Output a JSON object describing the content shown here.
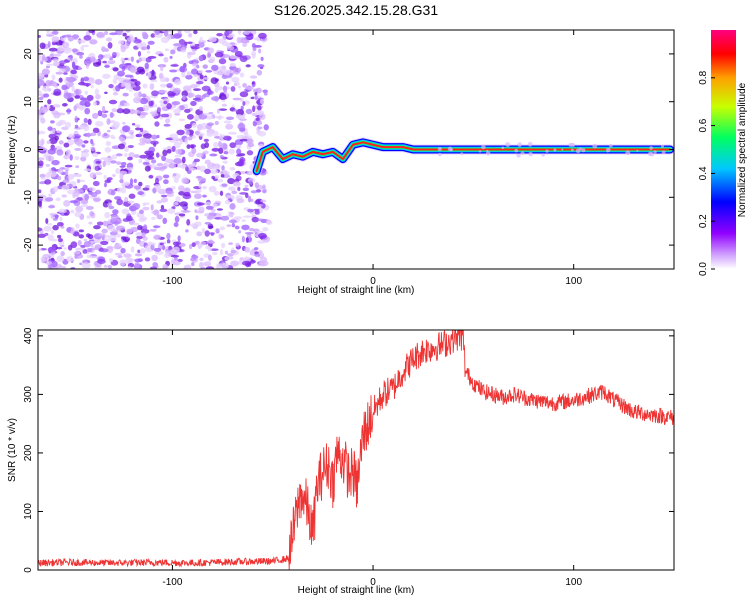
{
  "title": "S126.2025.342.15.28.G31",
  "chart_data": [
    {
      "type": "heatmap",
      "name": "spectrogram",
      "xlabel": "Height of straight line (km)",
      "ylabel": "Frequency (Hz)",
      "xlim": [
        -167,
        150
      ],
      "ylim": [
        -25,
        25
      ],
      "xticks": [
        -100,
        0,
        100
      ],
      "yticks": [
        -20,
        -10,
        0,
        10,
        20
      ],
      "noise_region_x": [
        -167,
        -53
      ],
      "signal_track": {
        "x": [
          -58,
          -55,
          -50,
          -45,
          -40,
          -35,
          -30,
          -25,
          -20,
          -15,
          -10,
          -5,
          0,
          5,
          10,
          15,
          20,
          25,
          30,
          60,
          100,
          148
        ],
        "freq_hz": [
          -4.5,
          -0.5,
          0.5,
          -2,
          -1,
          -1.5,
          -0.5,
          -1,
          -0.5,
          -2,
          1,
          1.5,
          1,
          0.5,
          0.5,
          0.5,
          0,
          0,
          0,
          0,
          0,
          0
        ]
      },
      "colorbar": {
        "label": "Normalized spectral amplitude",
        "range": [
          0,
          1
        ],
        "ticks": [
          "0.0",
          "0.2",
          "0.4",
          "0.6",
          "0.8"
        ],
        "colors": [
          "#ffffff",
          "#c000ff",
          "#0000ff",
          "#00c0ff",
          "#00ff80",
          "#ffff00",
          "#ff0000",
          "#ff0080"
        ]
      }
    },
    {
      "type": "line",
      "name": "snr",
      "xlabel": "Height of straight line (km)",
      "ylabel": "SNR (10 * v/v)",
      "xlim": [
        -167,
        150
      ],
      "ylim": [
        0,
        410
      ],
      "xticks": [
        -100,
        0,
        100
      ],
      "yticks": [
        0,
        100,
        200,
        300,
        400
      ],
      "line_color": "#ee3333",
      "x": [
        -167,
        -150,
        -130,
        -110,
        -90,
        -70,
        -50,
        -42,
        -38,
        -36,
        -33,
        -30,
        -28,
        -25,
        -22,
        -20,
        -18,
        -15,
        -12,
        -10,
        -8,
        -5,
        0,
        5,
        10,
        15,
        20,
        25,
        30,
        35,
        40,
        43,
        45,
        46,
        48,
        50,
        55,
        60,
        65,
        70,
        80,
        90,
        100,
        110,
        115,
        120,
        125,
        130,
        140,
        150
      ],
      "y": [
        12,
        13,
        12,
        13,
        12,
        14,
        15,
        20,
        100,
        130,
        110,
        60,
        140,
        170,
        180,
        150,
        200,
        190,
        160,
        170,
        140,
        230,
        270,
        300,
        310,
        340,
        360,
        375,
        380,
        385,
        395,
        400,
        395,
        340,
        330,
        320,
        305,
        300,
        295,
        300,
        290,
        285,
        290,
        300,
        305,
        290,
        280,
        270,
        265,
        260
      ]
    }
  ]
}
